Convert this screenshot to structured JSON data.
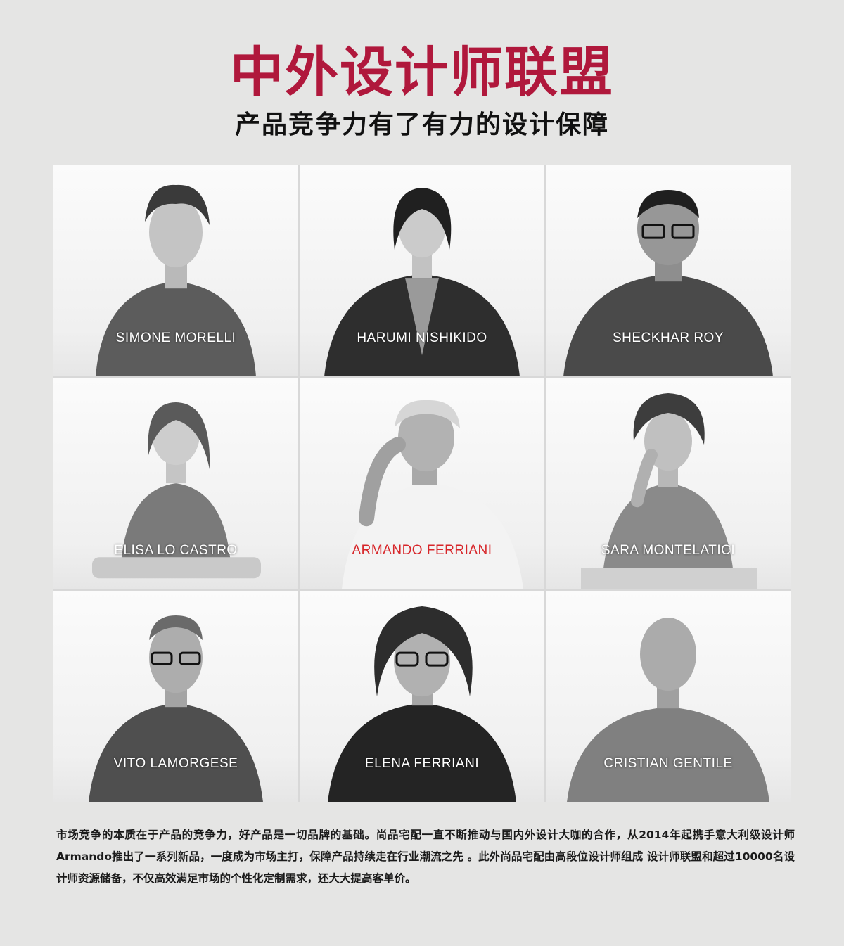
{
  "header": {
    "title": "中外设计师联盟",
    "subtitle": "产品竞争力有了有力的设计保障"
  },
  "designers": [
    {
      "name": "SIMONE MORELLI",
      "highlight": false
    },
    {
      "name": "HARUMI NISHIKIDO",
      "highlight": false
    },
    {
      "name": "SHECKHAR ROY",
      "highlight": false
    },
    {
      "name": "ELISA LO CASTRO",
      "highlight": false
    },
    {
      "name": "ARMANDO FERRIANI",
      "highlight": true
    },
    {
      "name": "SARA MONTELATICI",
      "highlight": false
    },
    {
      "name": "VITO LAMORGESE",
      "highlight": false
    },
    {
      "name": "ELENA FERRIANI",
      "highlight": false
    },
    {
      "name": "CRISTIAN GENTILE",
      "highlight": false
    }
  ],
  "description": "市场竞争的本质在于产品的竞争力，好产品是一切品牌的基础。尚品宅配一直不断推动与国内外设计大咖的合作，从2014年起携手意大利级设计师Armando推出了一系列新品，一度成为市场主打，保障产品持续走在行业潮流之先 。此外尚品宅配由高段位设计师组成 设计师联盟和超过10000名设计师资源储备，不仅高效满足市场的个性化定制需求，还大大提高客单价。",
  "colors": {
    "title": "#b0183c",
    "highlight_name": "#d7262a",
    "background": "#e5e5e4"
  }
}
